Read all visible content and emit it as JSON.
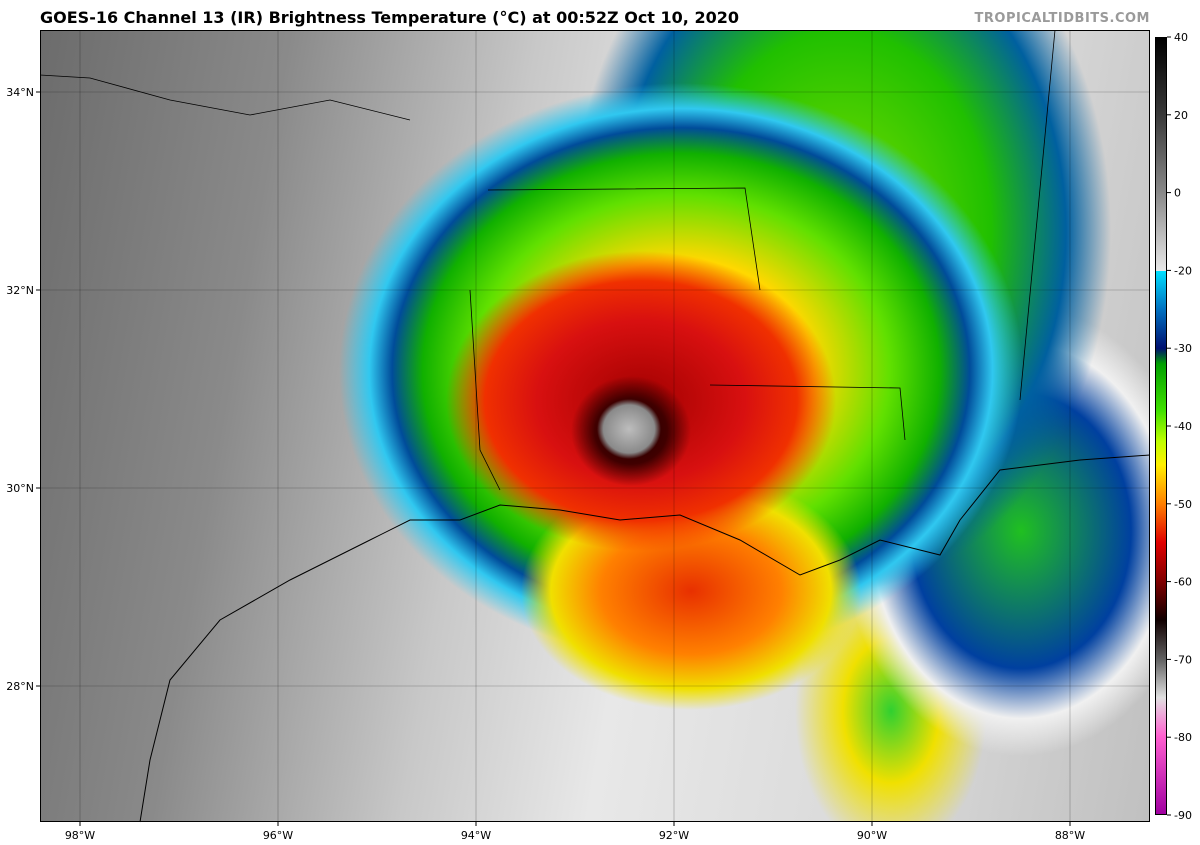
{
  "header": {
    "title": "GOES-16 Channel 13 (IR) Brightness Temperature (°C) at 00:52Z Oct 10, 2020",
    "credit": "TROPICALTIDBITS.COM"
  },
  "map": {
    "lat_ticks": [
      {
        "value": 34,
        "label": "34°N"
      },
      {
        "value": 32,
        "label": "32°N"
      },
      {
        "value": 30,
        "label": "30°N"
      },
      {
        "value": 28,
        "label": "28°N"
      }
    ],
    "lon_ticks": [
      {
        "value": -98,
        "label": "98°W"
      },
      {
        "value": -96,
        "label": "96°W"
      },
      {
        "value": -94,
        "label": "94°W"
      },
      {
        "value": -92,
        "label": "92°W"
      },
      {
        "value": -90,
        "label": "90°W"
      },
      {
        "value": -88,
        "label": "88°W"
      }
    ]
  },
  "colorbar": {
    "ticks": [
      40,
      20,
      0,
      -20,
      -30,
      -40,
      -50,
      -60,
      -70,
      -80,
      -90
    ]
  }
}
